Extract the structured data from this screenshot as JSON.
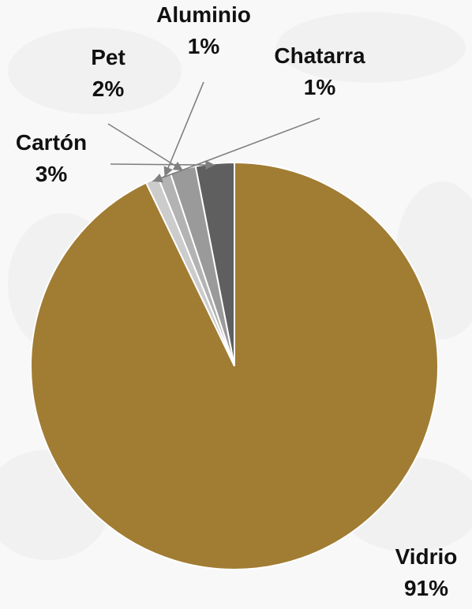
{
  "chart_data": {
    "type": "pie",
    "title": "",
    "slices": [
      {
        "category": "Vidrio",
        "value": 91,
        "label": "91%",
        "color": "#a17c33"
      },
      {
        "category": "Cartón",
        "value": 3,
        "label": "3%",
        "color": "#5f5f5f"
      },
      {
        "category": "Pet",
        "value": 2,
        "label": "2%",
        "color": "#9a9a9a"
      },
      {
        "category": "Aluminio",
        "value": 1,
        "label": "1%",
        "color": "#b3b3b3"
      },
      {
        "category": "Chatarra",
        "value": 1,
        "label": "1%",
        "color": "#cccccc"
      }
    ]
  }
}
